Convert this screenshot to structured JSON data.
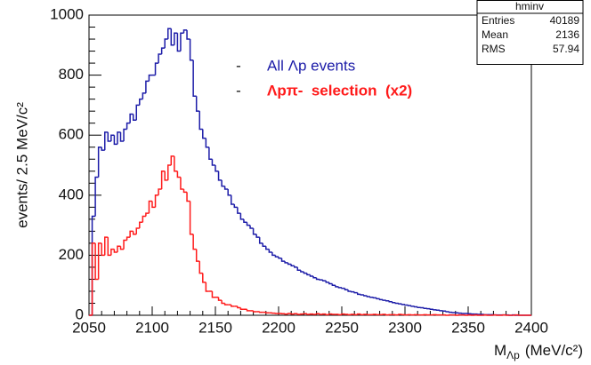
{
  "chart_data": {
    "type": "histogram",
    "y_label": "events/ 2.5 MeV/c²",
    "x_label": {
      "main": "M",
      "sub": "Λp",
      "unit": "(MeV/c²)"
    },
    "bins": [
      2050,
      2052.5,
      2055,
      2057.5,
      2060,
      2062.5,
      2065,
      2067.5,
      2070,
      2072.5,
      2075,
      2077.5,
      2080,
      2082.5,
      2085,
      2087.5,
      2090,
      2092.5,
      2095,
      2097.5,
      2100,
      2102.5,
      2105,
      2107.5,
      2110,
      2112.5,
      2115,
      2117.5,
      2120,
      2122.5,
      2125,
      2127.5,
      2130,
      2132.5,
      2135,
      2137.5,
      2140,
      2142.5,
      2145,
      2147.5,
      2150,
      2152.5,
      2155,
      2157.5,
      2160,
      2162.5,
      2165,
      2167.5,
      2170,
      2172.5,
      2175,
      2177.5,
      2180,
      2182.5,
      2185,
      2187.5,
      2190,
      2192.5,
      2195,
      2197.5,
      2200,
      2202.5,
      2205,
      2207.5,
      2210,
      2212.5,
      2215,
      2217.5,
      2220,
      2222.5,
      2225,
      2227.5,
      2230,
      2232.5,
      2235,
      2237.5,
      2240,
      2242.5,
      2245,
      2247.5,
      2250,
      2252.5,
      2255,
      2257.5,
      2260,
      2262.5,
      2265,
      2267.5,
      2270,
      2272.5,
      2275,
      2277.5,
      2280,
      2282.5,
      2285,
      2287.5,
      2290,
      2292.5,
      2295,
      2297.5,
      2300,
      2302.5,
      2305,
      2307.5,
      2310,
      2312.5,
      2315,
      2317.5,
      2320,
      2322.5,
      2325,
      2327.5,
      2330,
      2332.5,
      2335,
      2337.5,
      2340,
      2342.5,
      2345,
      2347.5,
      2350,
      2352.5,
      2355,
      2357.5,
      2360,
      2362.5,
      2365,
      2367.5,
      2370,
      2372.5,
      2375,
      2377.5,
      2380,
      2382.5,
      2385,
      2387.5,
      2390,
      2392.5,
      2395,
      2397.5,
      2400
    ],
    "series": [
      {
        "name": "All Λp events",
        "color": "#1c1ca8",
        "values": [
          0,
          330,
          460,
          560,
          550,
          610,
          580,
          600,
          570,
          610,
          580,
          620,
          640,
          670,
          650,
          700,
          720,
          740,
          780,
          800,
          800,
          840,
          870,
          890,
          920,
          955,
          900,
          940,
          880,
          940,
          950,
          920,
          850,
          730,
          680,
          620,
          590,
          560,
          520,
          500,
          480,
          450,
          430,
          420,
          400,
          370,
          360,
          340,
          320,
          310,
          300,
          290,
          270,
          260,
          240,
          230,
          220,
          210,
          200,
          195,
          190,
          180,
          175,
          170,
          165,
          160,
          150,
          145,
          140,
          135,
          130,
          125,
          120,
          118,
          115,
          110,
          105,
          100,
          95,
          92,
          90,
          85,
          80,
          78,
          75,
          70,
          68,
          65,
          62,
          60,
          58,
          55,
          52,
          50,
          48,
          45,
          42,
          40,
          38,
          36,
          34,
          32,
          30,
          28,
          26,
          25,
          23,
          22,
          20,
          18,
          17,
          15,
          14,
          12,
          10,
          9,
          8,
          7,
          6,
          6,
          5,
          4,
          4,
          3,
          3,
          2,
          2,
          2,
          1,
          1,
          1,
          1,
          1,
          0,
          1,
          0,
          0,
          0,
          0,
          0
        ]
      },
      {
        "name": "Λpπ-  selection  (x2)",
        "color": "#ff1a1a",
        "values": [
          0,
          240,
          120,
          240,
          200,
          260,
          200,
          220,
          210,
          230,
          220,
          250,
          260,
          280,
          270,
          290,
          310,
          330,
          340,
          380,
          360,
          400,
          420,
          480,
          450,
          500,
          530,
          480,
          460,
          420,
          410,
          380,
          270,
          220,
          180,
          140,
          110,
          80,
          80,
          60,
          60,
          50,
          40,
          35,
          35,
          30,
          30,
          25,
          20,
          20,
          15,
          15,
          12,
          12,
          10,
          10,
          8,
          8,
          7,
          6,
          6,
          5,
          4,
          6,
          4,
          5,
          3,
          4,
          5,
          3,
          4,
          3,
          5,
          3,
          4,
          2,
          4,
          3,
          3,
          2,
          4,
          3,
          2,
          3,
          2,
          4,
          2,
          3,
          2,
          2,
          3,
          2,
          2,
          3,
          1,
          2,
          2,
          1,
          3,
          2,
          1,
          2,
          1,
          2,
          1,
          1,
          2,
          1,
          1,
          2,
          1,
          1,
          1,
          0,
          1,
          1,
          0,
          1,
          1,
          0,
          1,
          0,
          1,
          0,
          0,
          1,
          0,
          0,
          1,
          0,
          0,
          1,
          0,
          0,
          0,
          1,
          0,
          0,
          0,
          0
        ]
      }
    ],
    "legend_marker": "-",
    "xlim": [
      2050,
      2400
    ],
    "xticks": [
      2050,
      2100,
      2150,
      2200,
      2250,
      2300,
      2350,
      2400
    ],
    "ylim": [
      0,
      1000
    ],
    "yticks": [
      0,
      200,
      400,
      600,
      800,
      1000
    ],
    "stats": {
      "title": "hminv",
      "rows": [
        [
          "Entries",
          "40189"
        ],
        [
          "Mean",
          "2136"
        ],
        [
          "RMS",
          "57.94"
        ]
      ]
    }
  }
}
